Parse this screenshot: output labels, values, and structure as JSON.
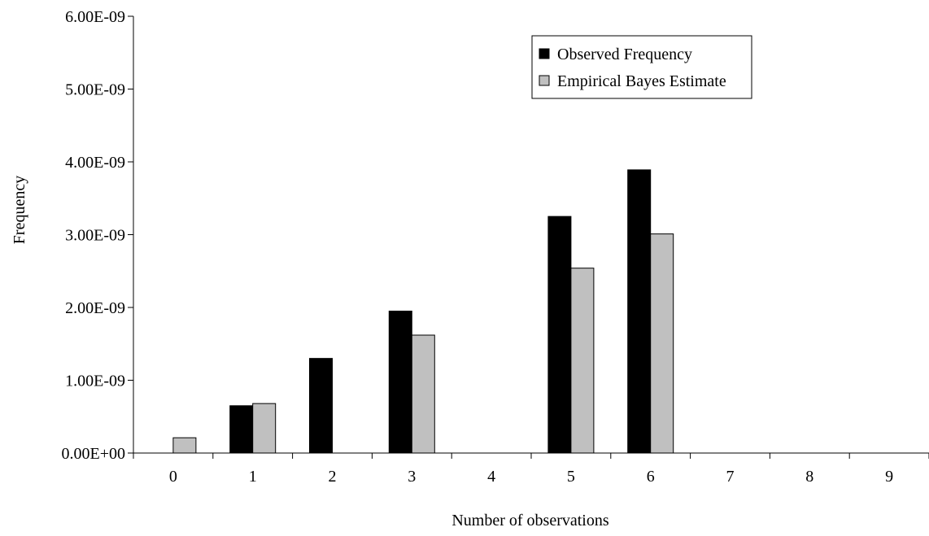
{
  "chart_data": {
    "type": "bar",
    "xlabel": "Number of observations",
    "ylabel": "Frequency",
    "categories": [
      "0",
      "1",
      "2",
      "3",
      "4",
      "5",
      "6",
      "7",
      "8",
      "9"
    ],
    "y_ticks": [
      "0.00E+00",
      "1.00E-09",
      "2.00E-09",
      "3.00E-09",
      "4.00E-09",
      "5.00E-09",
      "6.00E-09"
    ],
    "ylim": [
      0,
      6e-09
    ],
    "legend_position": "top-right",
    "grid": false,
    "series": [
      {
        "name": "Observed Frequency",
        "color": "#000000",
        "values": [
          0,
          6.5e-10,
          1.3e-09,
          1.95e-09,
          0,
          3.25e-09,
          3.89e-09,
          0,
          0,
          0
        ]
      },
      {
        "name": "Empirical Bayes Estimate",
        "color": "#c0c0c0",
        "values": [
          2.1e-10,
          6.8e-10,
          0,
          1.62e-09,
          0,
          2.54e-09,
          3.01e-09,
          0,
          0,
          0
        ]
      }
    ]
  }
}
